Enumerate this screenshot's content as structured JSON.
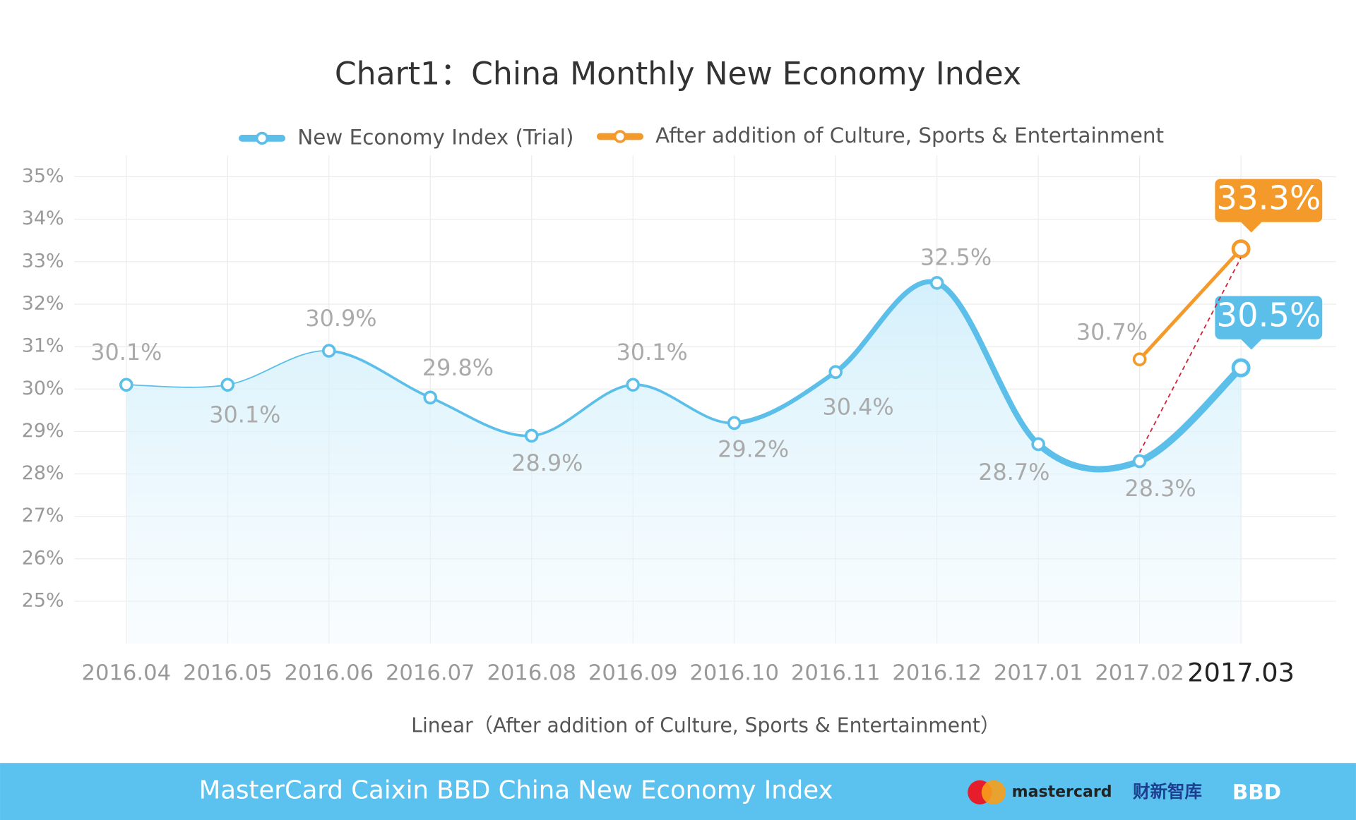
{
  "chart_data": {
    "type": "line",
    "title": "Chart1：China Monthly New Economy Index",
    "x_label": "Linear（After addition of Culture, Sports & Entertainment）",
    "categories": [
      "2016.04",
      "2016.05",
      "2016.06",
      "2016.07",
      "2016.08",
      "2016.09",
      "2016.10",
      "2016.11",
      "2016.12",
      "2017.01",
      "2017.02",
      "2017.03"
    ],
    "series": [
      {
        "name": "New Economy Index (Trial)",
        "color": "#5bbfea",
        "values": [
          30.1,
          30.1,
          30.9,
          29.8,
          28.9,
          30.1,
          29.2,
          30.4,
          32.5,
          28.7,
          28.3,
          30.5
        ],
        "value_labels": [
          "30.1%",
          "30.1%",
          "30.9%",
          "29.8%",
          "28.9%",
          "30.1%",
          "29.2%",
          "30.4%",
          "32.5%",
          "28.7%",
          "28.3%",
          "30.5%"
        ]
      },
      {
        "name": "After addition of Culture, Sports & Entertainment",
        "color": "#f39a2b",
        "values": [
          null,
          null,
          null,
          null,
          null,
          null,
          null,
          null,
          null,
          null,
          30.7,
          33.3
        ],
        "value_labels": [
          null,
          null,
          null,
          null,
          null,
          null,
          null,
          null,
          null,
          null,
          "30.7%",
          "33.3%"
        ]
      }
    ],
    "ylim": [
      24,
      35.5
    ],
    "yticks": [
      {
        "value": 25,
        "label": "25%"
      },
      {
        "value": 26,
        "label": "26%"
      },
      {
        "value": 27,
        "label": "27%"
      },
      {
        "value": 28,
        "label": "28%"
      },
      {
        "value": 29,
        "label": "29%"
      },
      {
        "value": 30,
        "label": "30%"
      },
      {
        "value": 31,
        "label": "31%"
      },
      {
        "value": 32,
        "label": "32%"
      },
      {
        "value": 33,
        "label": "33%"
      },
      {
        "value": 34,
        "label": "34%"
      },
      {
        "value": 35,
        "label": "35%"
      }
    ],
    "grid": true,
    "legend": "top"
  },
  "footer": {
    "title": "MasterCard Caixin BBD China New Economy Index",
    "brands": [
      "mastercard",
      "财新智库",
      "BBD"
    ]
  }
}
